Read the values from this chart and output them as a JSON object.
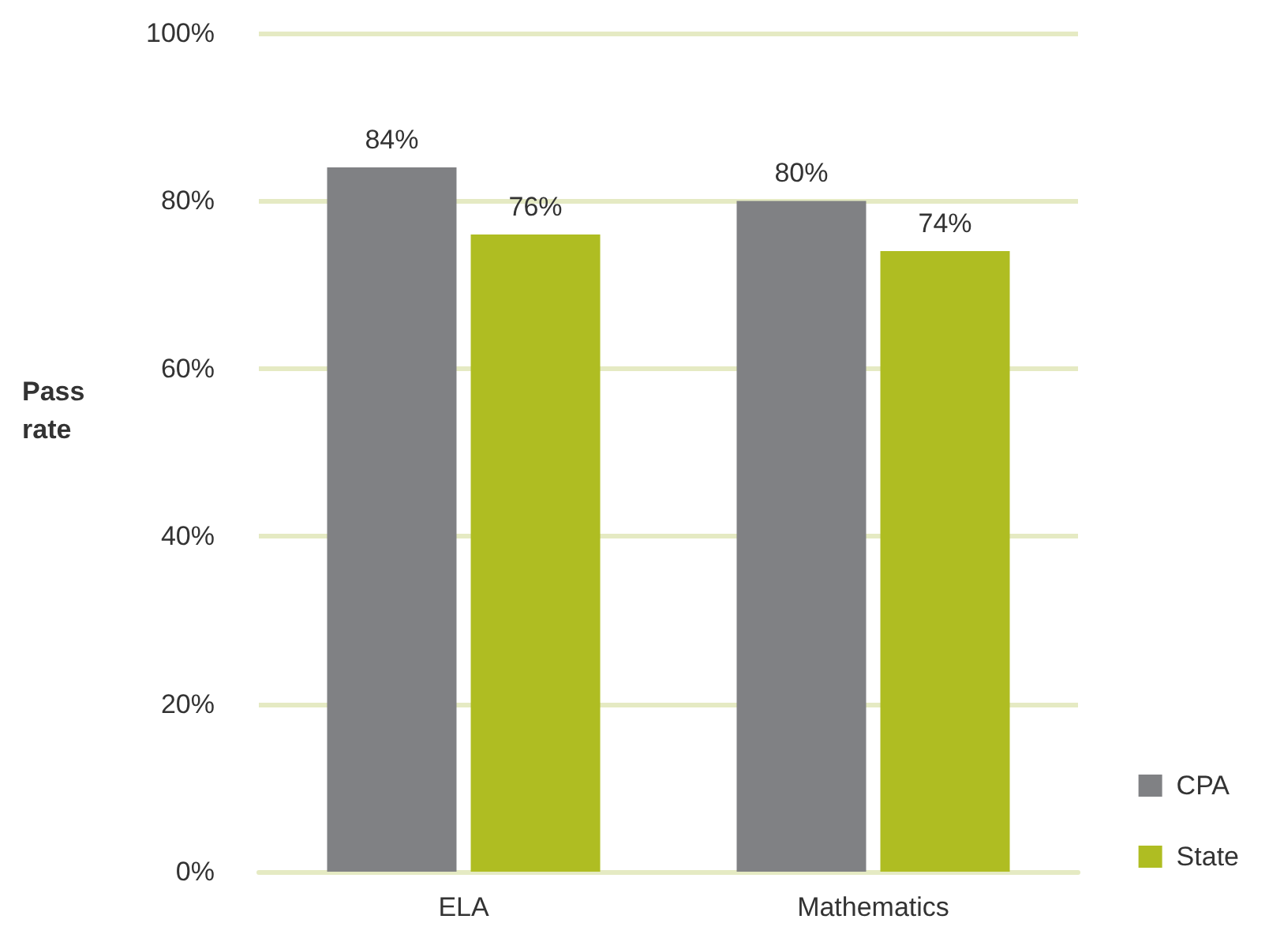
{
  "chart_data": {
    "type": "bar",
    "ylabel": "Pass rate",
    "categories": [
      "ELA",
      "Mathematics"
    ],
    "series": [
      {
        "name": "CPA",
        "color": "#808184",
        "values": [
          84,
          80
        ],
        "value_labels": [
          "84%",
          "80%"
        ]
      },
      {
        "name": "State",
        "color": "#afbd22",
        "values": [
          76,
          74
        ],
        "value_labels": [
          "76%",
          "74%"
        ]
      }
    ],
    "ylim": [
      0,
      100
    ],
    "yticks": [
      {
        "value": 0,
        "label": "0%"
      },
      {
        "value": 20,
        "label": "20%"
      },
      {
        "value": 40,
        "label": "40%"
      },
      {
        "value": 60,
        "label": "60%"
      },
      {
        "value": 80,
        "label": "80%"
      },
      {
        "value": 100,
        "label": "100%"
      }
    ],
    "grid": "y",
    "legend": "bottom right"
  }
}
